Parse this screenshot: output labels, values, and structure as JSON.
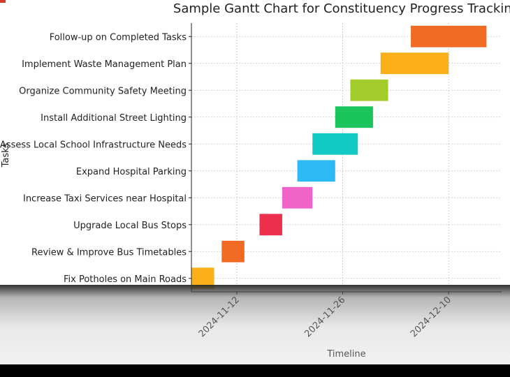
{
  "chart_data": {
    "type": "gantt",
    "title": "Sample Gantt Chart for Constituency Progress Tracking",
    "xlabel": "Timeline",
    "ylabel": "Tasks",
    "x_ticks": [
      "2024-11-12",
      "2024-11-26",
      "2024-12-10"
    ],
    "xlim": [
      "2024-11-06",
      "2024-12-17"
    ],
    "grid": true,
    "tasks": [
      {
        "name": "Fix Potholes on Main Roads",
        "start": "2024-11-06",
        "end": "2024-11-09",
        "color": "#FBB019"
      },
      {
        "name": "Review & Improve Bus Timetables",
        "start": "2024-11-10",
        "end": "2024-11-13",
        "color": "#F06A23"
      },
      {
        "name": "Upgrade Local Bus Stops",
        "start": "2024-11-15",
        "end": "2024-11-18",
        "color": "#EB2F4D"
      },
      {
        "name": "Increase Taxi Services near Hospital",
        "start": "2024-11-18",
        "end": "2024-11-22",
        "color": "#F063C8"
      },
      {
        "name": "Expand Hospital Parking",
        "start": "2024-11-20",
        "end": "2024-11-25",
        "color": "#2DB9F4"
      },
      {
        "name": "Assess Local School Infrastructure Needs",
        "start": "2024-11-22",
        "end": "2024-11-28",
        "color": "#13C9C4"
      },
      {
        "name": "Install Additional Street Lighting",
        "start": "2024-11-25",
        "end": "2024-11-30",
        "color": "#1CC55B"
      },
      {
        "name": "Organize Community Safety Meeting",
        "start": "2024-11-27",
        "end": "2024-12-02",
        "color": "#A1CC2A"
      },
      {
        "name": "Implement Waste Management Plan",
        "start": "2024-12-01",
        "end": "2024-12-10",
        "color": "#FBB019"
      },
      {
        "name": "Follow-up on Completed Tasks",
        "start": "2024-12-05",
        "end": "2024-12-15",
        "color": "#F06A23"
      }
    ]
  }
}
